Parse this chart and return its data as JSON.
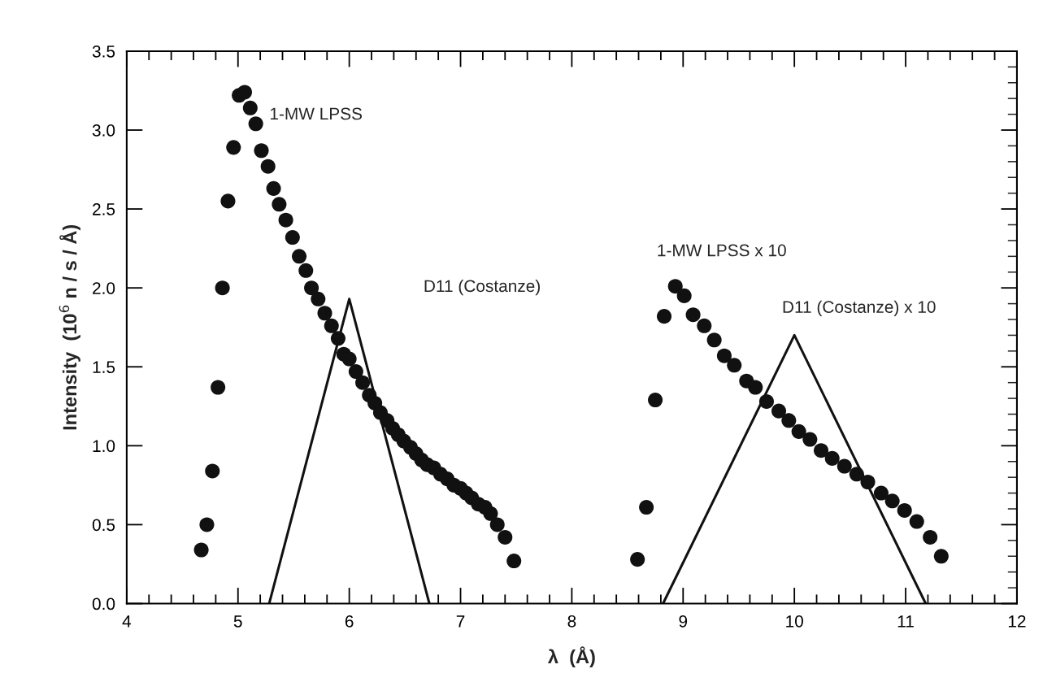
{
  "chart_data": {
    "type": "scatter",
    "xlabel": "λ  (Å)",
    "ylabel": "Intensity  (10$^{6}$ n / s / Å)",
    "xlim": [
      4,
      12
    ],
    "ylim": [
      0,
      3.5
    ],
    "xticks": [
      4,
      {
        "value": 4.2,
        "label": null
      },
      {
        "value": 4.4,
        "label": null
      },
      {
        "value": 4.6,
        "label": null
      },
      {
        "value": 4.8,
        "label": null
      },
      5,
      {
        "value": 5.2,
        "label": null
      },
      {
        "value": 5.4,
        "label": null
      },
      {
        "value": 5.6,
        "label": null
      },
      {
        "value": 5.8,
        "label": null
      },
      6,
      {
        "value": 6.2,
        "label": null
      },
      {
        "value": 6.4,
        "label": null
      },
      {
        "value": 6.6,
        "label": null
      },
      {
        "value": 6.8,
        "label": null
      },
      7,
      {
        "value": 7.2,
        "label": null
      },
      {
        "value": 7.4,
        "label": null
      },
      {
        "value": 7.6,
        "label": null
      },
      {
        "value": 7.8,
        "label": null
      },
      8,
      {
        "value": 8.2,
        "label": null
      },
      {
        "value": 8.4,
        "label": null
      },
      {
        "value": 8.6,
        "label": null
      },
      {
        "value": 8.8,
        "label": null
      },
      9,
      {
        "value": 9.2,
        "label": null
      },
      {
        "value": 9.4,
        "label": null
      },
      {
        "value": 9.6,
        "label": null
      },
      {
        "value": 9.8,
        "label": null
      },
      10,
      {
        "value": 10.2,
        "label": null
      },
      {
        "value": 10.4,
        "label": null
      },
      {
        "value": 10.6,
        "label": null
      },
      {
        "value": 10.8,
        "label": null
      },
      11,
      {
        "value": 11.2,
        "label": null
      },
      {
        "value": 11.4,
        "label": null
      },
      {
        "value": 11.6,
        "label": null
      },
      {
        "value": 11.8,
        "label": null
      },
      12
    ],
    "yticks": [
      {
        "value": 0,
        "label": "0.0"
      },
      0.5,
      {
        "value": 1,
        "label": "1.0"
      },
      1.5,
      {
        "value": 2,
        "label": "2.0"
      },
      2.5,
      {
        "value": 3,
        "label": "3.0"
      },
      3.5
    ],
    "grid": false,
    "legend": false,
    "series": [
      {
        "marker": "circle",
        "color": "#111111",
        "x": [
          4.67,
          4.72,
          4.77,
          4.82,
          4.86,
          4.91,
          4.96,
          5.01,
          5.06,
          5.11,
          5.16,
          5.21,
          5.27,
          5.32,
          5.37,
          5.43,
          5.49,
          5.55,
          5.61,
          5.66,
          5.72,
          5.78,
          5.84,
          5.9,
          5.95,
          6.0,
          6.06,
          6.12,
          6.18,
          6.23,
          6.28,
          6.34,
          6.39,
          6.44,
          6.49,
          6.55,
          6.6,
          6.65,
          6.7,
          6.76,
          6.82,
          6.88,
          6.94,
          7.0,
          7.05,
          7.1,
          7.16,
          7.22,
          7.27,
          7.33,
          7.4,
          7.48
        ],
        "values": [
          0.34,
          0.5,
          0.84,
          1.37,
          2.0,
          2.55,
          2.89,
          3.22,
          3.24,
          3.14,
          3.04,
          2.87,
          2.77,
          2.63,
          2.53,
          2.43,
          2.32,
          2.2,
          2.11,
          2.0,
          1.93,
          1.84,
          1.76,
          1.68,
          1.58,
          1.55,
          1.47,
          1.4,
          1.32,
          1.27,
          1.21,
          1.16,
          1.11,
          1.07,
          1.03,
          0.99,
          0.95,
          0.91,
          0.88,
          0.86,
          0.82,
          0.79,
          0.75,
          0.73,
          0.7,
          0.67,
          0.63,
          0.61,
          0.57,
          0.5,
          0.42,
          0.27
        ]
      },
      {
        "marker": "circle",
        "color": "#111111",
        "x": [
          8.59,
          8.67,
          8.75,
          8.83,
          8.93,
          9.01,
          9.09,
          9.19,
          9.28,
          9.37,
          9.46,
          9.57,
          9.65,
          9.75,
          9.86,
          9.95,
          10.04,
          10.14,
          10.24,
          10.34,
          10.45,
          10.56,
          10.66,
          10.78,
          10.88,
          10.99,
          11.1,
          11.22,
          11.32
        ],
        "values": [
          0.28,
          0.61,
          1.29,
          1.82,
          2.01,
          1.95,
          1.83,
          1.76,
          1.67,
          1.57,
          1.51,
          1.41,
          1.37,
          1.28,
          1.22,
          1.16,
          1.09,
          1.04,
          0.97,
          0.92,
          0.87,
          0.82,
          0.77,
          0.7,
          0.65,
          0.59,
          0.52,
          0.42,
          0.3
        ]
      },
      {
        "type": "line",
        "color": "#111111",
        "x": [
          5.28,
          6.0,
          6.72
        ],
        "values": [
          0,
          1.93,
          0
        ]
      },
      {
        "type": "line",
        "color": "#111111",
        "x": [
          8.82,
          10.0,
          11.18
        ],
        "values": [
          0,
          1.7,
          0
        ]
      }
    ],
    "annotations": [
      "1-MW LPSS",
      "D11 (Costanze)",
      "1-MW LPSS x 10",
      "D11 (Costanze) x 10"
    ]
  }
}
